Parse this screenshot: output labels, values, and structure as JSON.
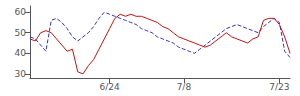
{
  "chart_data": {
    "type": "line",
    "categories": [
      null,
      null,
      null,
      null,
      null,
      null,
      null,
      null,
      null,
      null,
      null,
      null,
      null,
      null,
      null,
      "6/24",
      null,
      null,
      null,
      null,
      null,
      null,
      null,
      null,
      null,
      null,
      null,
      null,
      null,
      "7/8",
      null,
      null,
      null,
      null,
      null,
      null,
      null,
      null,
      null,
      null,
      null,
      null,
      null,
      null,
      null,
      null,
      null,
      "7/23",
      null,
      null
    ],
    "series": [
      {
        "color": "#3333cc",
        "line_style": "dashed",
        "values": [
          48,
          47,
          44,
          41,
          56,
          57,
          55,
          52,
          48,
          46,
          48,
          50,
          53,
          57,
          60,
          59,
          58,
          57,
          56,
          55,
          54,
          52,
          51,
          50,
          48,
          47,
          46,
          45,
          43,
          42,
          41,
          40,
          42,
          44,
          46,
          48,
          50,
          52,
          53,
          54,
          53,
          52,
          51,
          50,
          53,
          55,
          57,
          55,
          41,
          38
        ]
      },
      {
        "color": "#cc1111",
        "line_style": "solid",
        "values": [
          47,
          46,
          50,
          51,
          50,
          47,
          44,
          41,
          42,
          31,
          30,
          34,
          37,
          42,
          47,
          52,
          57,
          59,
          58,
          59,
          58,
          58,
          57,
          56,
          55,
          53,
          52,
          50,
          48,
          47,
          46,
          45,
          44,
          43,
          44,
          46,
          48,
          50,
          48,
          47,
          46,
          45,
          47,
          48,
          56,
          57,
          57,
          54,
          48,
          40
        ]
      }
    ],
    "ylim": [
      28,
      63
    ],
    "yticks": [
      30,
      40,
      50,
      60
    ],
    "grid": false
  }
}
